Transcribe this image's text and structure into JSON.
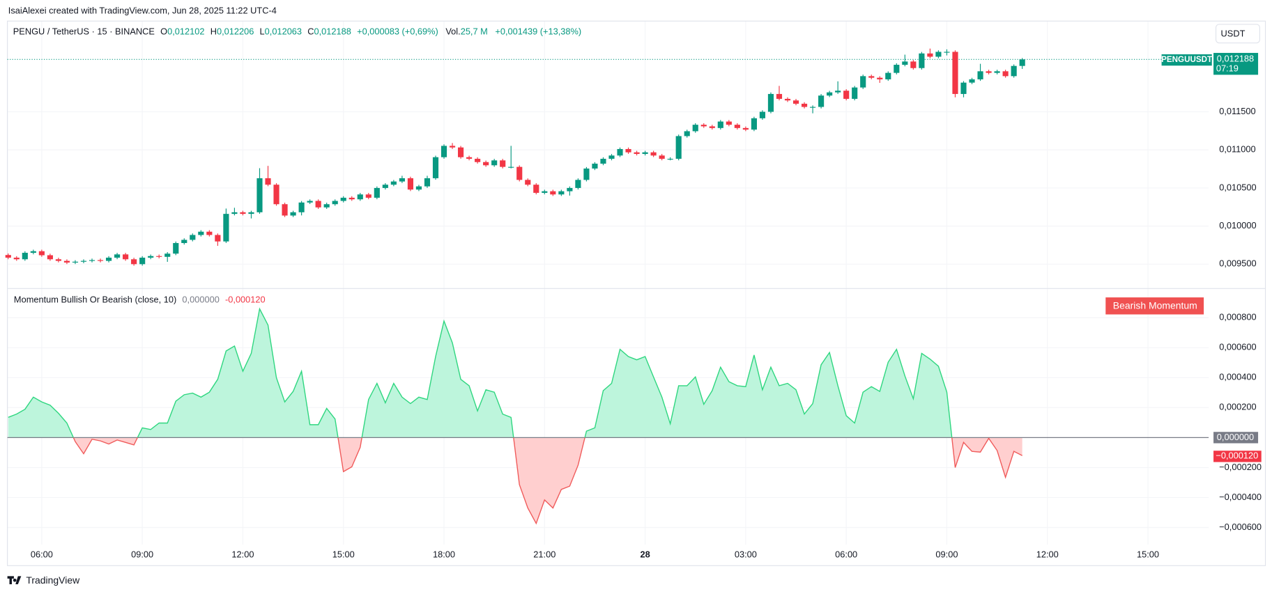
{
  "page": {
    "attribution": "IsaiAlexei created with TradingView.com, Jun 28, 2025 11:22 UTC-4",
    "currency_button": "USDT",
    "logo": "TradingView"
  },
  "chart_data": [
    {
      "type": "candlestick",
      "symbol": "PENGU / TetherUS · 15 · BINANCE",
      "legend": [
        {
          "label": "O",
          "value": "0,012102"
        },
        {
          "label": "H",
          "value": "0,012206"
        },
        {
          "label": "L",
          "value": "0,012063"
        },
        {
          "label": "C",
          "value": "0,012188"
        }
      ],
      "change": "+0,000083 (+0,69%)",
      "volume_label": "Vol.",
      "volume": "25,7 M",
      "range_change": "+0,001439 (+13,38%)",
      "last_labels": {
        "symbol": "PENGUUSDT",
        "price": "0,012188",
        "countdown": "07:19"
      },
      "up_color": "#089981",
      "down_color": "#f23645",
      "xlim": [
        4.976,
        40.81
      ],
      "xticks": [
        {
          "value": 6,
          "label": "06:00"
        },
        {
          "value": 9,
          "label": "09:00"
        },
        {
          "value": 12,
          "label": "12:00"
        },
        {
          "value": 15,
          "label": "15:00"
        },
        {
          "value": 18,
          "label": "18:00"
        },
        {
          "value": 21,
          "label": "21:00"
        },
        {
          "value": 24,
          "label": "28"
        },
        {
          "value": 27,
          "label": "03:00"
        },
        {
          "value": 30,
          "label": "06:00"
        },
        {
          "value": 33,
          "label": "09:00"
        },
        {
          "value": 36,
          "label": "12:00"
        },
        {
          "value": 39,
          "label": "15:00"
        }
      ],
      "ylim": [
        0.009191,
        0.012691
      ],
      "yticks": [
        {
          "value": 0.0095,
          "label": "0,009500"
        },
        {
          "value": 0.01,
          "label": "0,010000"
        },
        {
          "value": 0.0105,
          "label": "0,010500"
        },
        {
          "value": 0.011,
          "label": "0,011000"
        },
        {
          "value": 0.0115,
          "label": "0,011500"
        }
      ],
      "grid": true,
      "x": [
        5,
        5.25,
        5.5,
        5.75,
        6,
        6.25,
        6.5,
        6.75,
        7,
        7.25,
        7.5,
        7.75,
        8,
        8.25,
        8.5,
        8.75,
        9,
        9.25,
        9.5,
        9.75,
        10,
        10.25,
        10.5,
        10.75,
        11,
        11.25,
        11.5,
        11.75,
        12,
        12.25,
        12.5,
        12.75,
        13,
        13.25,
        13.5,
        13.75,
        14,
        14.25,
        14.5,
        14.75,
        15,
        15.25,
        15.5,
        15.75,
        16,
        16.25,
        16.5,
        16.75,
        17,
        17.25,
        17.5,
        17.75,
        18,
        18.25,
        18.5,
        18.75,
        19,
        19.25,
        19.5,
        19.75,
        20,
        20.25,
        20.5,
        20.75,
        21,
        21.25,
        21.5,
        21.75,
        22,
        22.25,
        22.5,
        22.75,
        23,
        23.25,
        23.5,
        23.75,
        24,
        24.25,
        24.5,
        24.75,
        25,
        25.25,
        25.5,
        25.75,
        26,
        26.25,
        26.5,
        26.75,
        27,
        27.25,
        27.5,
        27.75,
        28,
        28.25,
        28.5,
        28.75,
        29,
        29.25,
        29.5,
        29.75,
        30,
        30.25,
        30.5,
        30.75,
        31,
        31.25,
        31.5,
        31.75,
        32,
        32.25,
        32.5,
        32.75,
        33,
        33.25,
        33.5,
        33.75,
        34,
        34.25,
        34.5,
        34.75,
        35,
        35.25
      ],
      "ohlc": [
        [
          0.00962,
          0.00964,
          0.009565,
          0.009585
        ],
        [
          0.009585,
          0.009605,
          0.009544,
          0.009564
        ],
        [
          0.009564,
          0.009669,
          0.009544,
          0.009649
        ],
        [
          0.009649,
          0.00969,
          0.009629,
          0.00967
        ],
        [
          0.00967,
          0.00969,
          0.009597,
          0.009617
        ],
        [
          0.009617,
          0.009637,
          0.009544,
          0.009564
        ],
        [
          0.009564,
          0.009584,
          0.009523,
          0.009543
        ],
        [
          0.009543,
          0.009563,
          0.009501,
          0.009521
        ],
        [
          0.009521,
          0.009552,
          0.009501,
          0.009532
        ],
        [
          0.009532,
          0.009563,
          0.009512,
          0.009543
        ],
        [
          0.009543,
          0.009573,
          0.009523,
          0.009553
        ],
        [
          0.009553,
          0.009573,
          0.009523,
          0.009543
        ],
        [
          0.009543,
          0.009605,
          0.009523,
          0.009585
        ],
        [
          0.009585,
          0.009648,
          0.009565,
          0.009628
        ],
        [
          0.009628,
          0.009648,
          0.009544,
          0.009564
        ],
        [
          0.009564,
          0.009584,
          0.00948,
          0.0095
        ],
        [
          0.0095,
          0.009605,
          0.00948,
          0.009585
        ],
        [
          0.009585,
          0.009626,
          0.009565,
          0.009606
        ],
        [
          0.009606,
          0.009626,
          0.009576,
          0.009596
        ],
        [
          0.009596,
          0.009658,
          0.00953,
          0.009638
        ],
        [
          0.009638,
          0.009797,
          0.009618,
          0.009777
        ],
        [
          0.009777,
          0.009839,
          0.009757,
          0.009819
        ],
        [
          0.009819,
          0.009903,
          0.009799,
          0.009883
        ],
        [
          0.009883,
          0.009946,
          0.009863,
          0.009926
        ],
        [
          0.009926,
          0.009946,
          0.009863,
          0.009883
        ],
        [
          0.009883,
          0.009903,
          0.00974,
          0.009798
        ],
        [
          0.009798,
          0.01023,
          0.009778,
          0.01016
        ],
        [
          0.01016,
          0.01024,
          0.01014,
          0.010181
        ],
        [
          0.010181,
          0.010201,
          0.01014,
          0.01016
        ],
        [
          0.01016,
          0.010201,
          0.0101,
          0.010181
        ],
        [
          0.010181,
          0.01076,
          0.010161,
          0.010628
        ],
        [
          0.010628,
          0.01079,
          0.010523,
          0.010543
        ],
        [
          0.010543,
          0.010563,
          0.010267,
          0.010287
        ],
        [
          0.010287,
          0.010307,
          0.010118,
          0.010138
        ],
        [
          0.010138,
          0.010201,
          0.010118,
          0.010181
        ],
        [
          0.010181,
          0.010329,
          0.01014,
          0.010309
        ],
        [
          0.010309,
          0.01035,
          0.010289,
          0.01033
        ],
        [
          0.01033,
          0.01035,
          0.010225,
          0.010245
        ],
        [
          0.010245,
          0.010307,
          0.010225,
          0.010287
        ],
        [
          0.010287,
          0.01035,
          0.010267,
          0.01033
        ],
        [
          0.01033,
          0.010392,
          0.01031,
          0.010372
        ],
        [
          0.010372,
          0.010392,
          0.010331,
          0.010351
        ],
        [
          0.010351,
          0.010435,
          0.010331,
          0.010415
        ],
        [
          0.010415,
          0.010435,
          0.010352,
          0.010372
        ],
        [
          0.010372,
          0.01052,
          0.010352,
          0.0105
        ],
        [
          0.0105,
          0.010563,
          0.01048,
          0.010543
        ],
        [
          0.010543,
          0.010605,
          0.010523,
          0.010585
        ],
        [
          0.010585,
          0.01066,
          0.010565,
          0.010628
        ],
        [
          0.010628,
          0.010648,
          0.010459,
          0.010479
        ],
        [
          0.010479,
          0.010541,
          0.010459,
          0.010521
        ],
        [
          0.010521,
          0.01066,
          0.010501,
          0.010628
        ],
        [
          0.010628,
          0.010924,
          0.010608,
          0.010904
        ],
        [
          0.010904,
          0.011073,
          0.010884,
          0.011053
        ],
        [
          0.011053,
          0.01109,
          0.011012,
          0.011032
        ],
        [
          0.011032,
          0.011052,
          0.010884,
          0.010904
        ],
        [
          0.010904,
          0.010924,
          0.010863,
          0.010883
        ],
        [
          0.010883,
          0.010903,
          0.01082,
          0.01084
        ],
        [
          0.01084,
          0.01086,
          0.010778,
          0.010798
        ],
        [
          0.010798,
          0.010882,
          0.010778,
          0.010862
        ],
        [
          0.010862,
          0.010882,
          0.010757,
          0.010777
        ],
        [
          0.010777,
          0.011053,
          0.010757,
          0.010777
        ],
        [
          0.010777,
          0.010797,
          0.010586,
          0.010606
        ],
        [
          0.010606,
          0.010626,
          0.010523,
          0.010543
        ],
        [
          0.010543,
          0.010563,
          0.010416,
          0.010436
        ],
        [
          0.010436,
          0.010477,
          0.010416,
          0.010457
        ],
        [
          0.010457,
          0.010477,
          0.010395,
          0.010415
        ],
        [
          0.010415,
          0.010477,
          0.010395,
          0.010457
        ],
        [
          0.010457,
          0.01052,
          0.0104,
          0.0105
        ],
        [
          0.0105,
          0.010626,
          0.01048,
          0.010606
        ],
        [
          0.010606,
          0.010775,
          0.010586,
          0.010755
        ],
        [
          0.010755,
          0.010839,
          0.010735,
          0.010819
        ],
        [
          0.010819,
          0.010903,
          0.010799,
          0.010883
        ],
        [
          0.010883,
          0.010946,
          0.010863,
          0.010926
        ],
        [
          0.010926,
          0.011031,
          0.010906,
          0.011011
        ],
        [
          0.011011,
          0.011031,
          0.010948,
          0.010968
        ],
        [
          0.010968,
          0.010988,
          0.010927,
          0.010947
        ],
        [
          0.010947,
          0.010988,
          0.010927,
          0.010968
        ],
        [
          0.010968,
          0.010988,
          0.010906,
          0.010926
        ],
        [
          0.010926,
          0.010946,
          0.010863,
          0.010883
        ],
        [
          0.010883,
          0.010903,
          0.010863,
          0.010883
        ],
        [
          0.010883,
          0.011201,
          0.010863,
          0.011181
        ],
        [
          0.011181,
          0.011265,
          0.011161,
          0.011245
        ],
        [
          0.011245,
          0.01135,
          0.011225,
          0.01133
        ],
        [
          0.01133,
          0.01135,
          0.011289,
          0.011309
        ],
        [
          0.011309,
          0.011329,
          0.011267,
          0.011287
        ],
        [
          0.011287,
          0.011392,
          0.011267,
          0.011372
        ],
        [
          0.011372,
          0.011392,
          0.01131,
          0.01133
        ],
        [
          0.01133,
          0.01135,
          0.011267,
          0.011287
        ],
        [
          0.011287,
          0.011307,
          0.011246,
          0.011266
        ],
        [
          0.011266,
          0.011435,
          0.011246,
          0.011415
        ],
        [
          0.011415,
          0.01152,
          0.011395,
          0.0115
        ],
        [
          0.0115,
          0.011754,
          0.01148,
          0.011734
        ],
        [
          0.011734,
          0.01184,
          0.01165,
          0.01167
        ],
        [
          0.01167,
          0.01169,
          0.011629,
          0.011649
        ],
        [
          0.011649,
          0.011669,
          0.011586,
          0.011606
        ],
        [
          0.011606,
          0.011626,
          0.011544,
          0.011564
        ],
        [
          0.011564,
          0.011584,
          0.01148,
          0.011564
        ],
        [
          0.011564,
          0.011733,
          0.011544,
          0.011713
        ],
        [
          0.011713,
          0.011775,
          0.011693,
          0.011755
        ],
        [
          0.011755,
          0.0119,
          0.011735,
          0.011777
        ],
        [
          0.011777,
          0.011797,
          0.01165,
          0.01167
        ],
        [
          0.01167,
          0.011839,
          0.01165,
          0.011819
        ],
        [
          0.011819,
          0.011988,
          0.011799,
          0.011968
        ],
        [
          0.011968,
          0.011988,
          0.011927,
          0.011947
        ],
        [
          0.011947,
          0.011967,
          0.01188,
          0.011926
        ],
        [
          0.011926,
          0.012031,
          0.011906,
          0.012011
        ],
        [
          0.012011,
          0.012137,
          0.011991,
          0.012117
        ],
        [
          0.012117,
          0.01225,
          0.012097,
          0.01216
        ],
        [
          0.01216,
          0.01218,
          0.012054,
          0.012074
        ],
        [
          0.012074,
          0.012286,
          0.012054,
          0.012266
        ],
        [
          0.012266,
          0.01233,
          0.012203,
          0.012223
        ],
        [
          0.012223,
          0.012307,
          0.012203,
          0.012287
        ],
        [
          0.012287,
          0.01232,
          0.01224,
          0.012287
        ],
        [
          0.012287,
          0.012307,
          0.01169,
          0.011734
        ],
        [
          0.011734,
          0.011903,
          0.01169,
          0.011883
        ],
        [
          0.011883,
          0.011946,
          0.011863,
          0.011926
        ],
        [
          0.011926,
          0.01213,
          0.011906,
          0.012032
        ],
        [
          0.012032,
          0.012052,
          0.011991,
          0.012011
        ],
        [
          0.012011,
          0.012052,
          0.011991,
          0.012032
        ],
        [
          0.012032,
          0.012052,
          0.011948,
          0.011968
        ],
        [
          0.011968,
          0.012122,
          0.011948,
          0.012102
        ],
        [
          0.012102,
          0.012206,
          0.012063,
          0.012188
        ]
      ]
    },
    {
      "type": "area",
      "indicator": "Momentum Bullish Or Bearish (close, 10)",
      "legend_values": [
        "0,000000",
        "-0,000120"
      ],
      "scale_labels": [
        "0,000000",
        "−0,000120"
      ],
      "signal": "Bearish Momentum",
      "pos_color": "#2ed67f",
      "neg_color": "#f05b5b",
      "pos_fill": "#bdf5dc",
      "neg_fill": "#ffcfcf",
      "ylim": [
        -0.000714,
        0.000995
      ],
      "yticks": [
        {
          "value": 0.0008,
          "label": "0,000800"
        },
        {
          "value": 0.0006,
          "label": "0,000600"
        },
        {
          "value": 0.0004,
          "label": "0,000400"
        },
        {
          "value": 0.0002,
          "label": "0,000200"
        },
        {
          "value": -0.0002,
          "label": "−0,000200"
        },
        {
          "value": -0.0004,
          "label": "−0,000400"
        },
        {
          "value": -0.0006,
          "label": "−0,000600"
        }
      ],
      "values": [
        0.000135,
        0.000157,
        0.000189,
        0.00027,
        0.000238,
        0.000216,
        0.000162,
        9.7e-05,
        -2.7e-05,
        -0.000108,
        -1.1e-05,
        -2.2e-05,
        -4.3e-05,
        -1.6e-05,
        -3.2e-05,
        -4.9e-05,
        6.5e-05,
        5.4e-05,
        9.7e-05,
        9.7e-05,
        0.000243,
        0.000286,
        0.000297,
        0.00027,
        0.000303,
        0.000389,
        0.000578,
        0.000611,
        0.000443,
        0.000562,
        0.000859,
        0.000751,
        0.0004,
        0.000238,
        0.000308,
        0.000443,
        8.6e-05,
        8.6e-05,
        0.000195,
        0.000124,
        -0.000227,
        -0.000195,
        -6.5e-05,
        0.000254,
        0.000362,
        0.000232,
        0.000362,
        0.00027,
        0.000227,
        0.00027,
        0.000254,
        0.000541,
        0.000778,
        0.000632,
        0.000389,
        0.000346,
        0.000178,
        0.000319,
        0.000303,
        0.000157,
        0.000135,
        -0.000314,
        -0.00047,
        -0.000573,
        -0.000416,
        -0.00047,
        -0.000346,
        -0.000324,
        -0.000184,
        4.3e-05,
        6.5e-05,
        0.000313,
        0.000362,
        0.000589,
        0.000541,
        0.000519,
        0.000541,
        0.000405,
        0.00027,
        9.2e-05,
        0.000346,
        0.000346,
        0.000405,
        0.000222,
        0.000313,
        0.00047,
        0.000373,
        0.000346,
        0.00034,
        0.000551,
        0.000319,
        0.00047,
        0.000346,
        0.000362,
        0.000319,
        0.000157,
        0.000227,
        0.000486,
        0.000568,
        0.000346,
        0.000146,
        9.7e-05,
        0.000303,
        0.00034,
        0.000308,
        0.000503,
        0.000589,
        0.000411,
        0.000259,
        0.000562,
        0.000524,
        0.000476,
        0.000303,
        -0.0002,
        -3.2e-05,
        -9.2e-05,
        -9.7e-05,
        -5e-06,
        -8.6e-05,
        -0.000265,
        -9.2e-05,
        -0.00012
      ]
    }
  ]
}
